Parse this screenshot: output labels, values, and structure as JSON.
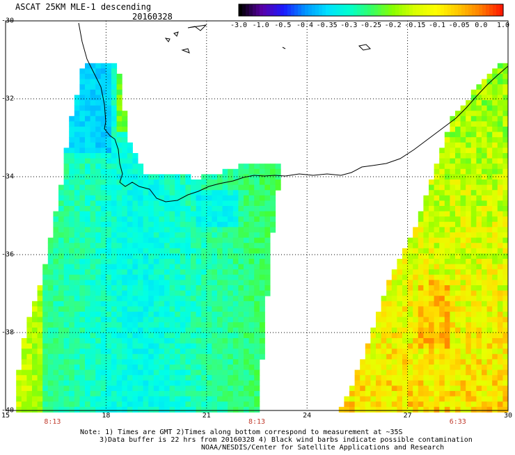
{
  "header": {
    "title": "ASCAT 25KM MLE-1 descending",
    "date": "20160328"
  },
  "colorbar": {
    "labels": [
      "-3.0",
      "-1.0",
      "-0.5",
      "-0.4",
      "-0.35",
      "-0.3",
      "-0.25",
      "-0.2",
      "-0.15",
      "-0.1",
      "-0.05",
      "0.0",
      "1.0"
    ],
    "colors": [
      "#000000",
      "#5a00a8",
      "#1a1aff",
      "#0096ff",
      "#00e0ff",
      "#00ffd0",
      "#33ff66",
      "#88ff00",
      "#d8ff00",
      "#ffff00",
      "#ffc800",
      "#ff8000",
      "#ff1a00"
    ]
  },
  "axes": {
    "lat_labels": [
      "-30",
      "-32",
      "-34",
      "-36",
      "-38",
      "-40"
    ],
    "lon_labels": [
      "15",
      "18",
      "21",
      "24",
      "27",
      "30"
    ],
    "times": [
      "8:13",
      "8:13",
      "6:33"
    ]
  },
  "notes": {
    "line1": "Note: 1) Times are GMT 2)Times along bottom correspond to measurement at ~35S",
    "line2": "3)Data buffer is 22 hrs from 20160328 4) Black wind barbs indicate possible contamination",
    "line3": "NOAA/NESDIS/Center for Satellite Applications and Research"
  }
}
